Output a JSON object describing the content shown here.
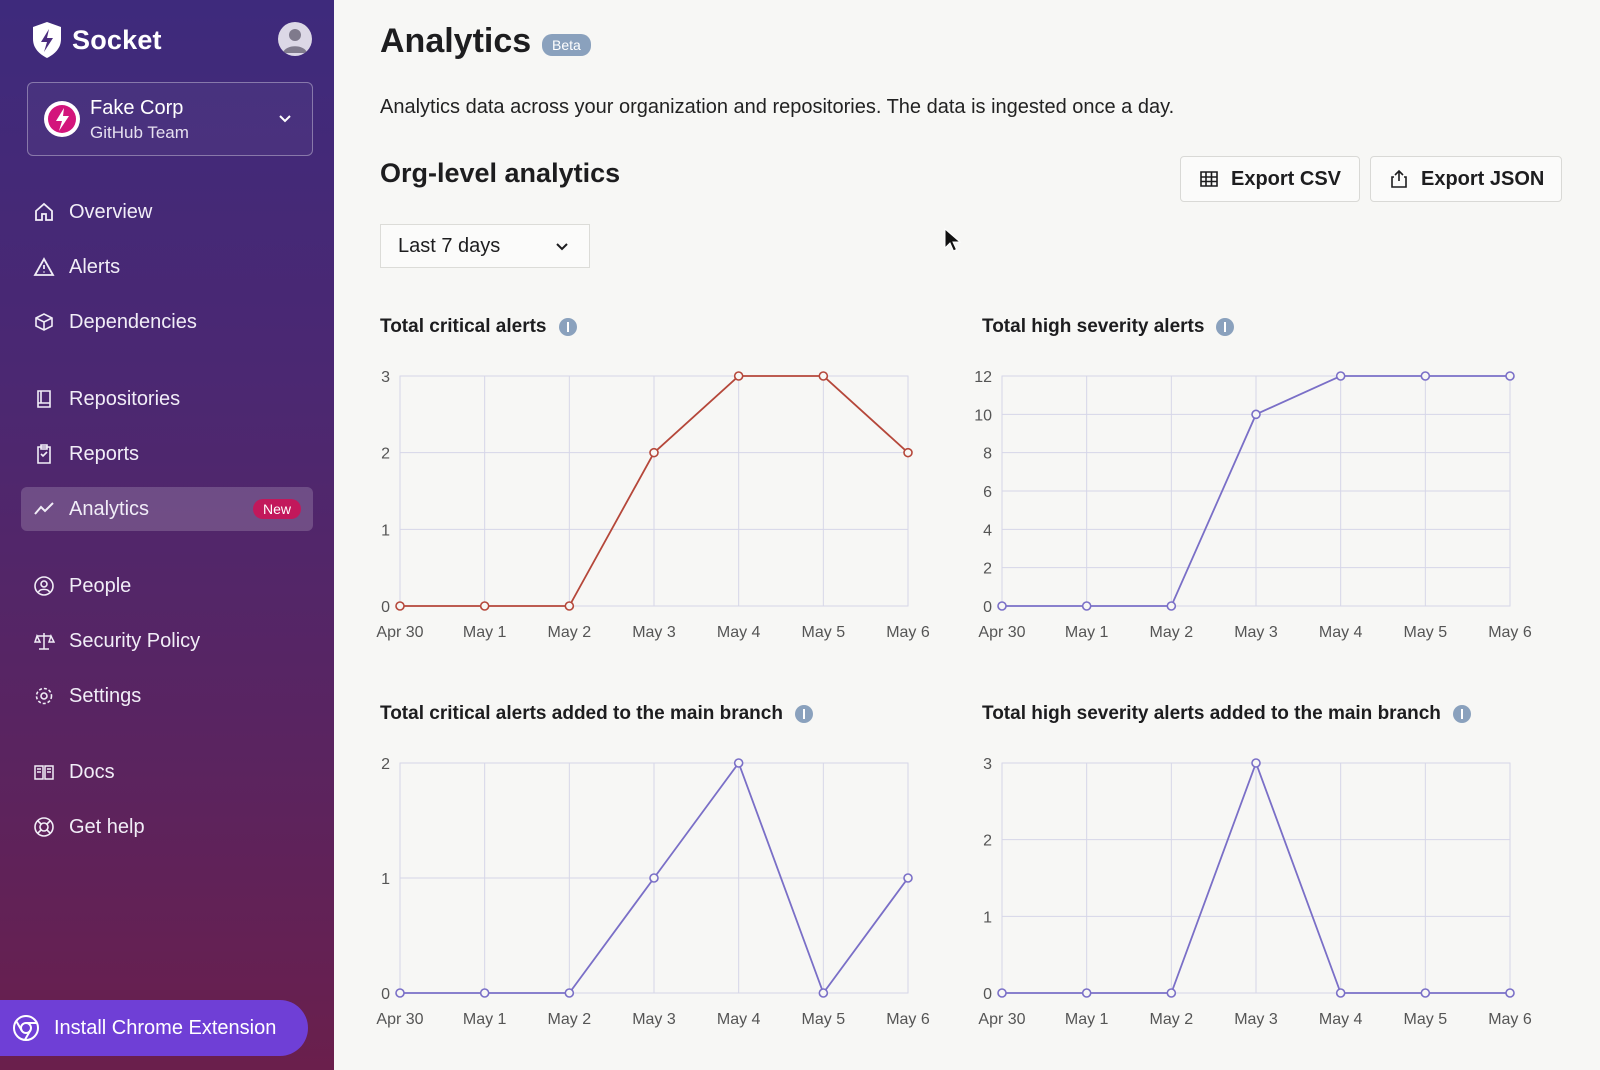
{
  "sidebar": {
    "brand": "Socket",
    "org": {
      "name": "Fake Corp",
      "subtitle": "GitHub Team"
    },
    "items": [
      {
        "label": "Overview",
        "icon": "home-icon"
      },
      {
        "label": "Alerts",
        "icon": "alert-triangle-icon"
      },
      {
        "label": "Dependencies",
        "icon": "package-icon"
      },
      {
        "label": "Repositories",
        "icon": "book-icon"
      },
      {
        "label": "Reports",
        "icon": "clipboard-icon"
      },
      {
        "label": "Analytics",
        "icon": "trend-icon",
        "badge": "New",
        "active": true
      },
      {
        "label": "People",
        "icon": "user-circle-icon"
      },
      {
        "label": "Security Policy",
        "icon": "scale-icon"
      },
      {
        "label": "Settings",
        "icon": "gear-icon"
      },
      {
        "label": "Docs",
        "icon": "docs-icon"
      },
      {
        "label": "Get help",
        "icon": "lifebuoy-icon"
      }
    ],
    "chrome_extension": "Install Chrome Extension"
  },
  "header": {
    "title": "Analytics",
    "badge": "Beta",
    "subtitle": "Analytics data across your organization and repositories. The data is ingested once a day."
  },
  "section": {
    "title": "Org-level analytics",
    "export_csv": "Export CSV",
    "export_json": "Export JSON",
    "range": "Last 7 days"
  },
  "colors": {
    "critical_line": "#b5473a",
    "high_line": "#7a6fc7",
    "grid": "#d6d6e8"
  },
  "chart_data": [
    {
      "type": "line",
      "title": "Total critical alerts",
      "x": [
        "Apr 30",
        "May 1",
        "May 2",
        "May 3",
        "May 4",
        "May 5",
        "May 6"
      ],
      "values": [
        0,
        0,
        0,
        2,
        3,
        3,
        2
      ],
      "yticks": [
        0,
        1,
        2,
        3
      ],
      "ylim": [
        0,
        3
      ],
      "color": "#b5473a"
    },
    {
      "type": "line",
      "title": "Total high severity alerts",
      "x": [
        "Apr 30",
        "May 1",
        "May 2",
        "May 3",
        "May 4",
        "May 5",
        "May 6"
      ],
      "values": [
        0,
        0,
        0,
        10,
        12,
        12,
        12
      ],
      "yticks": [
        0,
        2,
        4,
        6,
        8,
        10,
        12
      ],
      "ylim": [
        0,
        12
      ],
      "color": "#7a6fc7"
    },
    {
      "type": "line",
      "title": "Total critical alerts added to the main branch",
      "x": [
        "Apr 30",
        "May 1",
        "May 2",
        "May 3",
        "May 4",
        "May 5",
        "May 6"
      ],
      "values": [
        0,
        0,
        0,
        1,
        2,
        0,
        1
      ],
      "yticks": [
        0,
        1,
        2
      ],
      "ylim": [
        0,
        2
      ],
      "color": "#7a6fc7"
    },
    {
      "type": "line",
      "title": "Total high severity alerts added to the main branch",
      "x": [
        "Apr 30",
        "May 1",
        "May 2",
        "May 3",
        "May 4",
        "May 5",
        "May 6"
      ],
      "values": [
        0,
        0,
        0,
        3,
        0,
        0,
        0
      ],
      "yticks": [
        0,
        1,
        2,
        3
      ],
      "ylim": [
        0,
        3
      ],
      "color": "#7a6fc7"
    }
  ]
}
